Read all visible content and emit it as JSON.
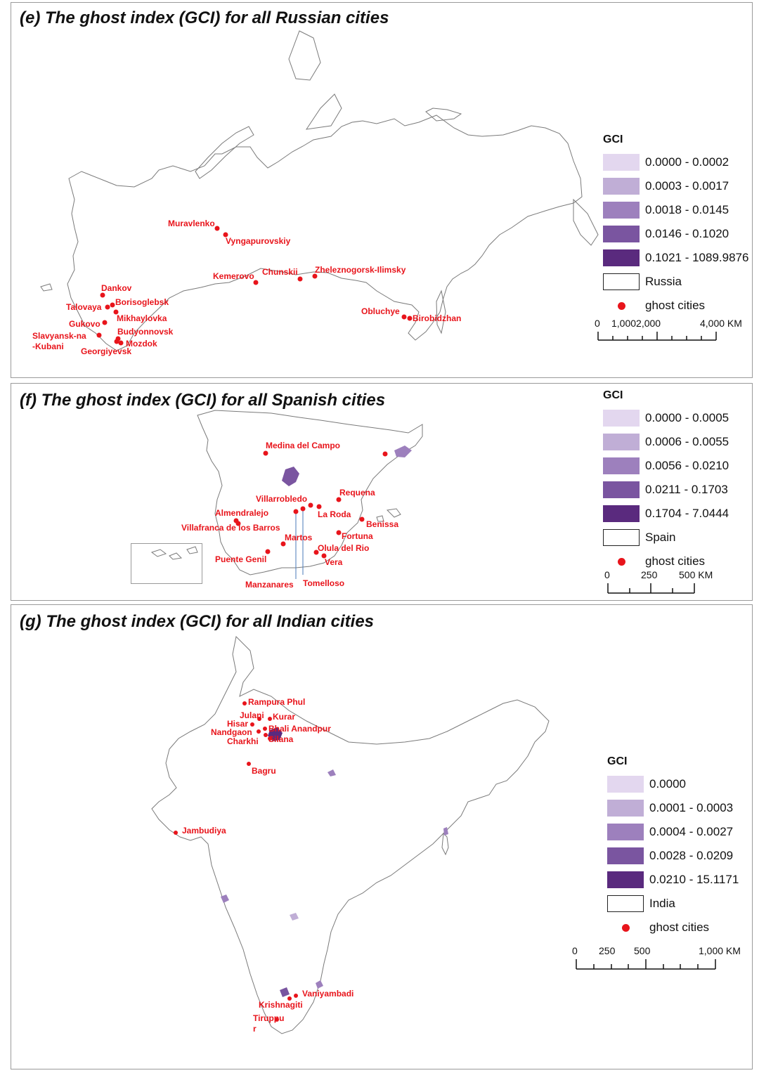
{
  "colors": {
    "class1": "#e3d7ef",
    "class2": "#c0aed6",
    "class3": "#9d80bd",
    "class4": "#7a55a0",
    "class5": "#5a2a7e",
    "ghost_dot": "#e8141b"
  },
  "panels": {
    "russia": {
      "title": "(e)  The ghost index (GCI) for all Russian cities",
      "legend": {
        "title": "GCI",
        "classes": [
          "0.0000 - 0.0002",
          "0.0003 - 0.0017",
          "0.0018 - 0.0145",
          "0.0146 - 0.1020",
          "0.1021 - 1089.9876"
        ],
        "country": "Russia",
        "ghost": "ghost cities"
      },
      "scale": {
        "labels": [
          "0",
          "1,0002,000",
          "4,000 KM"
        ]
      },
      "cities": [
        "Muravlenko",
        "Vyngapurovskiy",
        "Kemerovo",
        "Chunskii",
        "Zheleznogorsk-Ilimsky",
        "Dankov",
        "Talovaya",
        "Borisoglebsk",
        "Mikhaylovka",
        "Gukovo",
        "Budyonnovsk",
        "Slavyansk-na",
        "-Kubani",
        "Mozdok",
        "Georgiyevsk",
        "Obluchye",
        "Birobidzhan"
      ]
    },
    "spain": {
      "title": "(f)  The ghost index (GCI) for all Spanish cities",
      "legend": {
        "title": "GCI",
        "classes": [
          "0.0000 - 0.0005",
          "0.0006 - 0.0055",
          "0.0056 - 0.0210",
          "0.0211 - 0.1703",
          "0.1704 - 7.0444"
        ],
        "country": "Spain",
        "ghost": "ghost cities"
      },
      "scale": {
        "labels": [
          "0",
          "250",
          "500 KM"
        ]
      },
      "cities": [
        "Medina del Campo",
        "Requena",
        "Villarrobledo",
        "Almendralejo",
        "La Roda",
        "Benissa",
        "Villafranca de los Barros",
        "Fortuna",
        "Martos",
        "Olula del Rio",
        "Puente Genil",
        "Vera",
        "Manzanares",
        "Tomelloso"
      ]
    },
    "india": {
      "title": "(g)  The ghost index (GCI) for all Indian cities",
      "legend": {
        "title": "GCI",
        "classes": [
          "0.0000",
          "0.0001 - 0.0003",
          "0.0004 - 0.0027",
          "0.0028 - 0.0209",
          "0.0210 - 15.1171"
        ],
        "country": "India",
        "ghost": "ghost cities"
      },
      "scale": {
        "labels": [
          "0",
          "250",
          "500",
          "1,000 KM"
        ]
      },
      "cities": [
        "Rampura Phul",
        "Julani",
        "Kurar",
        "Hisar",
        "Bhali Anandpur",
        "Nandgaon",
        "Charkhi",
        "Silana",
        "Bagru",
        "Jambudiya",
        "Vaniyambadi",
        "Krishnagiti",
        "Tiruppu",
        "r"
      ]
    }
  }
}
